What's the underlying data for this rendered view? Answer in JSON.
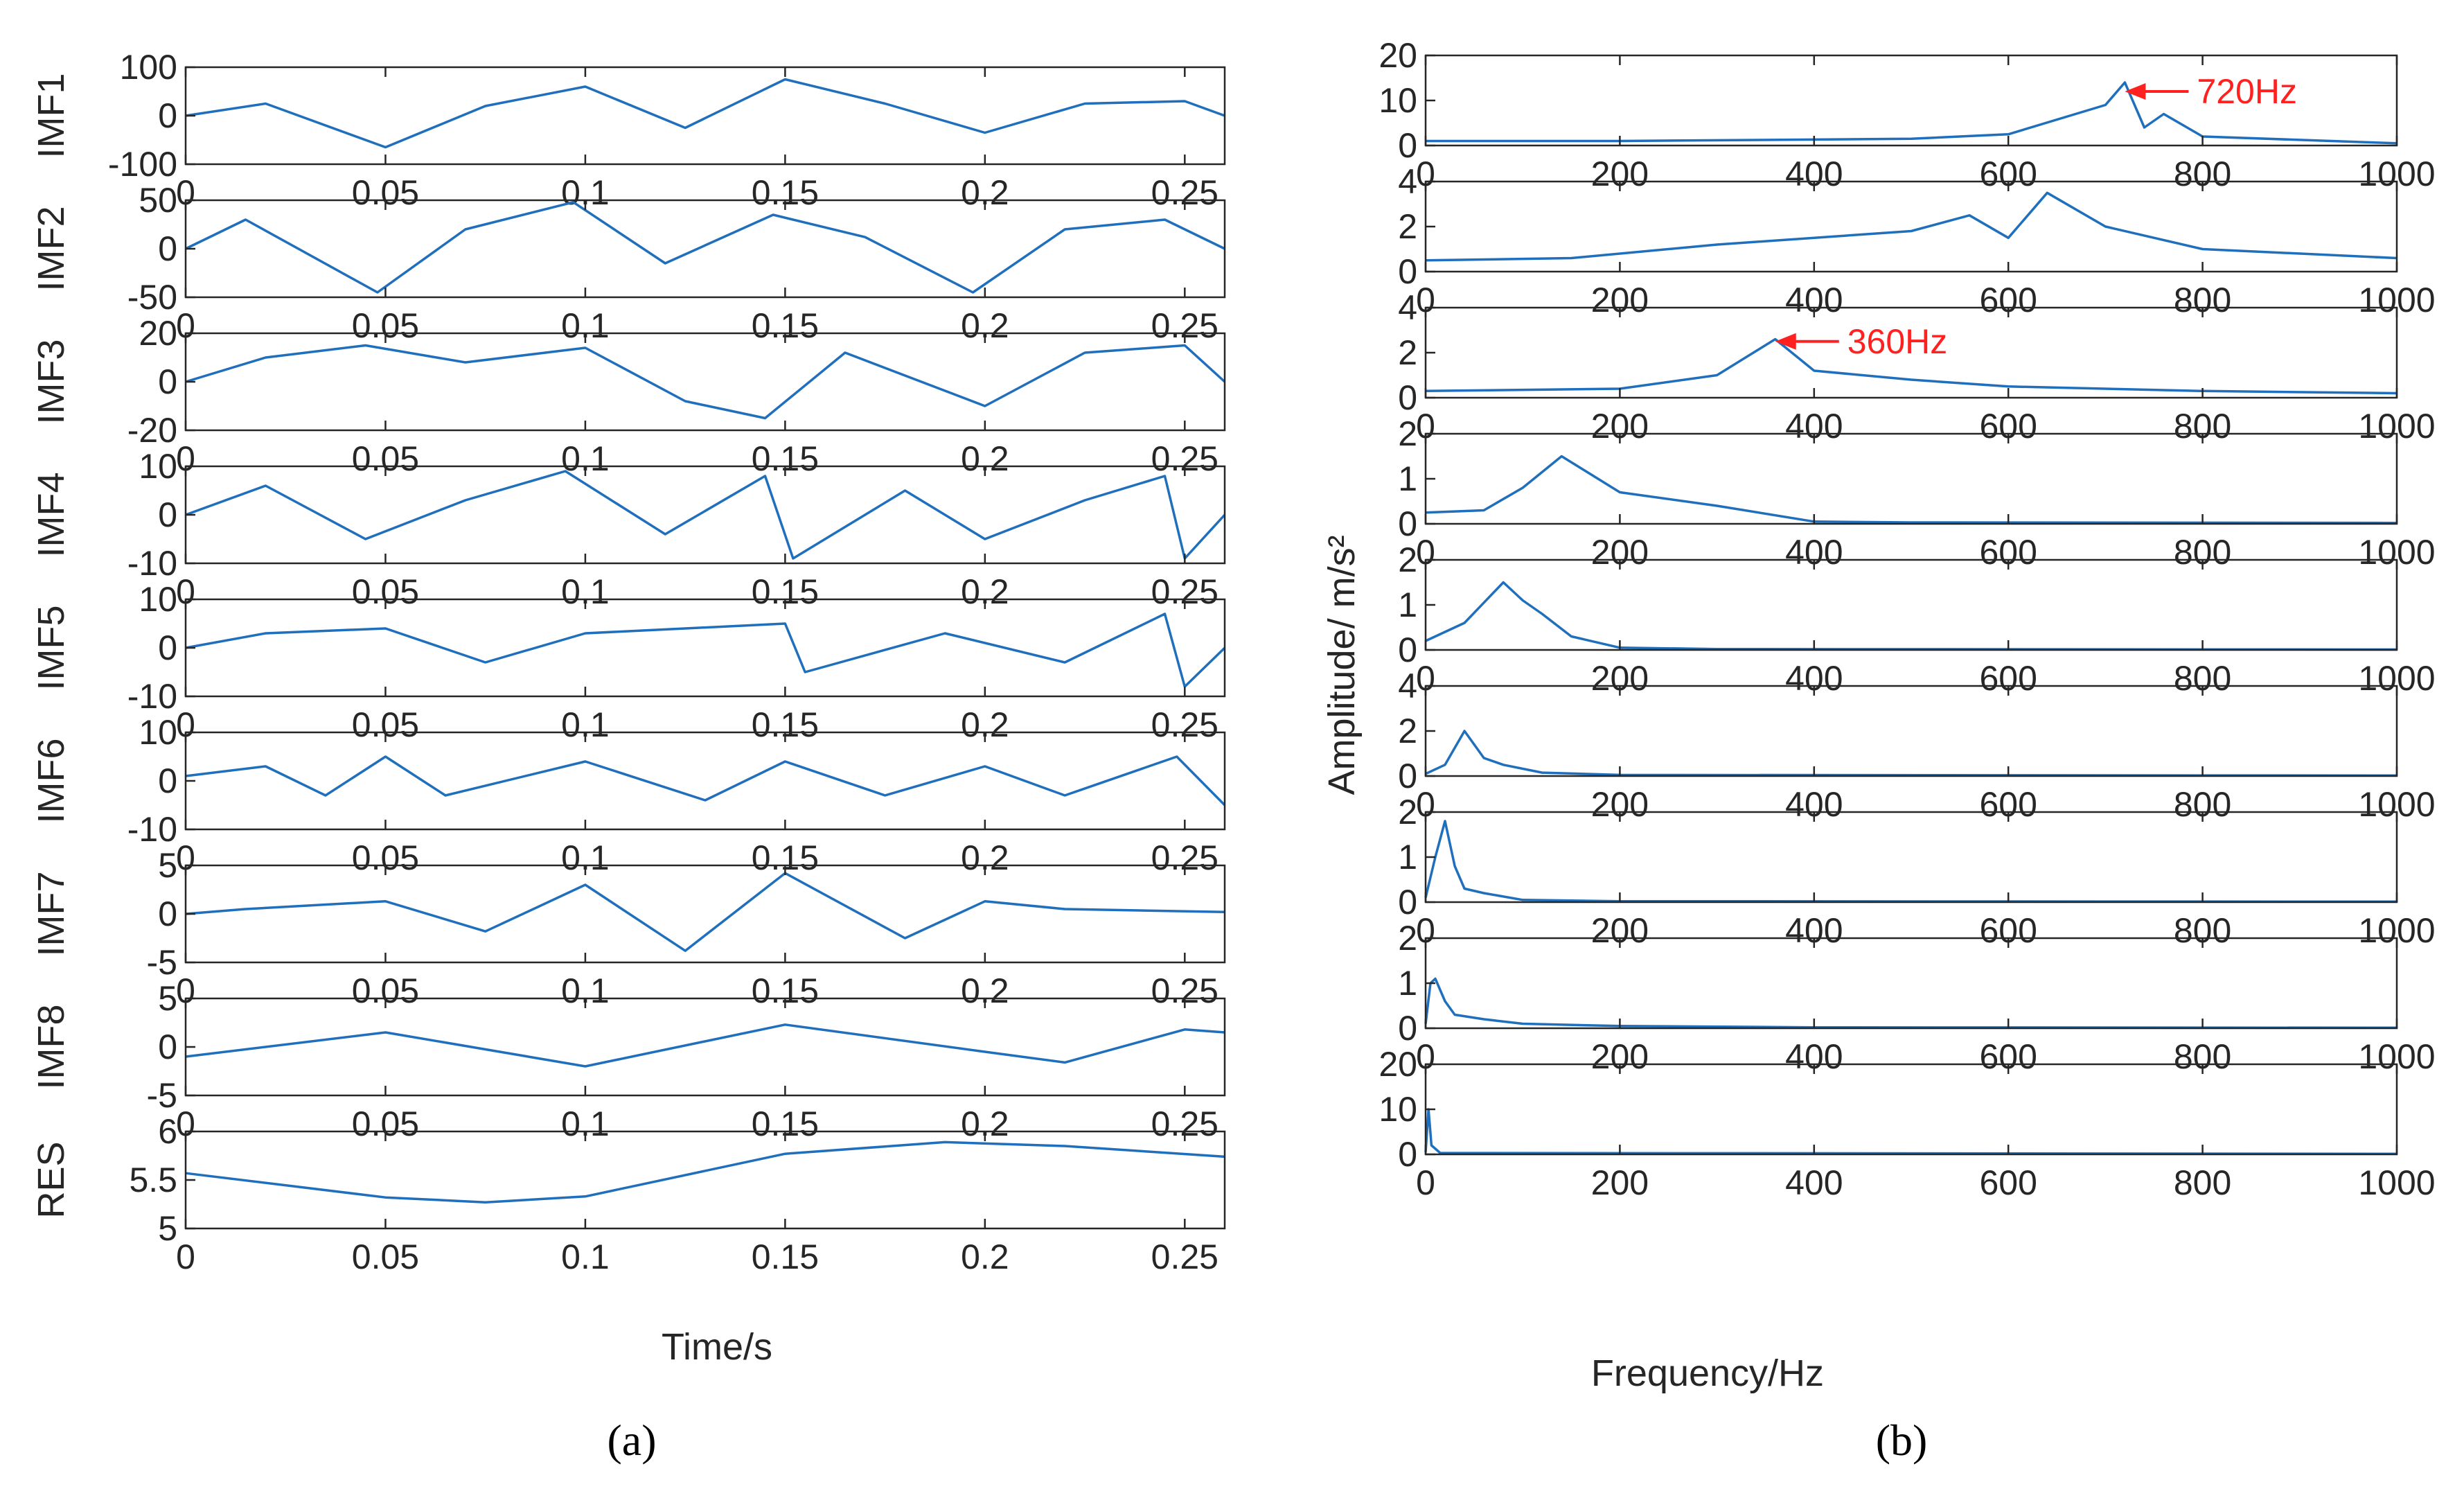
{
  "figure": {
    "panel_a_label": "(a)",
    "panel_b_label": "(b)",
    "colors": {
      "trace": "#1f6fbd",
      "annotation": "#ff2020",
      "axis": "#262626"
    }
  },
  "chart_data": [
    {
      "type": "line",
      "panel": "a",
      "xlabel": "Time/s",
      "xlim": [
        0,
        0.26
      ],
      "xticks": [
        "0",
        "0.05",
        "0.1",
        "0.15",
        "0.2",
        "0.25"
      ],
      "subplots": [
        {
          "ylabel": "IMF1",
          "ylim": [
            -100,
            100
          ],
          "yticks": [
            "-100",
            "0",
            "100"
          ],
          "series": [
            {
              "x": [
                0,
                0.02,
                0.05,
                0.075,
                0.1,
                0.125,
                0.15,
                0.175,
                0.2,
                0.225,
                0.25,
                0.26
              ],
              "y": [
                0,
                25,
                -65,
                20,
                60,
                -25,
                75,
                25,
                -35,
                25,
                30,
                0
              ]
            }
          ]
        },
        {
          "ylabel": "IMF2",
          "ylim": [
            -50,
            50
          ],
          "yticks": [
            "-50",
            "0",
            "50"
          ],
          "series": [
            {
              "x": [
                0,
                0.015,
                0.048,
                0.07,
                0.097,
                0.12,
                0.147,
                0.17,
                0.197,
                0.22,
                0.245,
                0.26
              ],
              "y": [
                0,
                30,
                -45,
                20,
                48,
                -15,
                35,
                12,
                -45,
                20,
                30,
                0
              ]
            }
          ]
        },
        {
          "ylabel": "IMF3",
          "ylim": [
            -20,
            20
          ],
          "yticks": [
            "-20",
            "0",
            "20"
          ],
          "series": [
            {
              "x": [
                0,
                0.02,
                0.045,
                0.07,
                0.1,
                0.125,
                0.145,
                0.165,
                0.2,
                0.225,
                0.25,
                0.26
              ],
              "y": [
                0,
                10,
                15,
                8,
                14,
                -8,
                -15,
                12,
                -10,
                12,
                15,
                0
              ]
            }
          ]
        },
        {
          "ylabel": "IMF4",
          "ylim": [
            -10,
            10
          ],
          "yticks": [
            "-10",
            "0",
            "10"
          ],
          "series": [
            {
              "x": [
                0,
                0.02,
                0.045,
                0.07,
                0.095,
                0.12,
                0.145,
                0.152,
                0.18,
                0.2,
                0.225,
                0.245,
                0.25,
                0.26
              ],
              "y": [
                0,
                6,
                -5,
                3,
                9,
                -4,
                8,
                -9,
                5,
                -5,
                3,
                8,
                -9,
                0
              ]
            }
          ]
        },
        {
          "ylabel": "IMF5",
          "ylim": [
            -10,
            10
          ],
          "yticks": [
            "-10",
            "0",
            "10"
          ],
          "series": [
            {
              "x": [
                0,
                0.02,
                0.05,
                0.075,
                0.1,
                0.125,
                0.15,
                0.155,
                0.19,
                0.22,
                0.245,
                0.25,
                0.26
              ],
              "y": [
                0,
                3,
                4,
                -3,
                3,
                4,
                5,
                -5,
                3,
                -3,
                7,
                -8,
                0
              ]
            }
          ]
        },
        {
          "ylabel": "IMF6",
          "ylim": [
            -10,
            10
          ],
          "yticks": [
            "-10",
            "0",
            "10"
          ],
          "series": [
            {
              "x": [
                0,
                0.02,
                0.035,
                0.05,
                0.065,
                0.1,
                0.13,
                0.15,
                0.175,
                0.2,
                0.22,
                0.248,
                0.26
              ],
              "y": [
                1,
                3,
                -3,
                5,
                -3,
                4,
                -4,
                4,
                -3,
                3,
                -3,
                5,
                -5
              ]
            }
          ]
        },
        {
          "ylabel": "IMF7",
          "ylim": [
            -5,
            5
          ],
          "yticks": [
            "-5",
            "0",
            "5"
          ],
          "series": [
            {
              "x": [
                0,
                0.015,
                0.05,
                0.075,
                0.1,
                0.125,
                0.15,
                0.18,
                0.2,
                0.22,
                0.26
              ],
              "y": [
                0,
                0.5,
                1.3,
                -1.8,
                3.0,
                -3.8,
                4.2,
                -2.5,
                1.3,
                0.5,
                0.2
              ]
            }
          ]
        },
        {
          "ylabel": "IMF8",
          "ylim": [
            -5,
            5
          ],
          "yticks": [
            "-5",
            "0",
            "5"
          ],
          "series": [
            {
              "x": [
                0,
                0.05,
                0.1,
                0.15,
                0.2,
                0.22,
                0.25,
                0.26
              ],
              "y": [
                -1,
                1.5,
                -2,
                2.3,
                -0.5,
                -1.6,
                1.8,
                1.5
              ]
            }
          ]
        },
        {
          "ylabel": "RES",
          "ylim": [
            5,
            6
          ],
          "yticks": [
            "5",
            "5.5",
            "6"
          ],
          "series": [
            {
              "x": [
                0,
                0.05,
                0.075,
                0.1,
                0.15,
                0.19,
                0.22,
                0.26
              ],
              "y": [
                5.57,
                5.32,
                5.27,
                5.33,
                5.77,
                5.89,
                5.85,
                5.74
              ]
            }
          ]
        }
      ]
    },
    {
      "type": "line",
      "panel": "b",
      "xlabel": "Frequency/Hz",
      "ylabel": "Amplitude/  m/s²",
      "xlim": [
        0,
        1000
      ],
      "xticks": [
        "0",
        "200",
        "400",
        "600",
        "800",
        "1000"
      ],
      "subplots": [
        {
          "ylim": [
            0,
            20
          ],
          "yticks": [
            "0",
            "10",
            "20"
          ],
          "series": [
            {
              "x": [
                0,
                200,
                500,
                600,
                700,
                720,
                740,
                760,
                800,
                1000
              ],
              "y": [
                1,
                1,
                1.5,
                2.5,
                9,
                14,
                4,
                7,
                2,
                0.5
              ]
            }
          ],
          "annotations": [
            {
              "text": "720Hz",
              "x": 720,
              "y": 12
            }
          ]
        },
        {
          "ylim": [
            0,
            4
          ],
          "yticks": [
            "0",
            "2",
            "4"
          ],
          "series": [
            {
              "x": [
                0,
                150,
                300,
                500,
                560,
                600,
                640,
                700,
                800,
                1000
              ],
              "y": [
                0.5,
                0.6,
                1.2,
                1.8,
                2.5,
                1.5,
                3.5,
                2,
                1,
                0.6
              ]
            }
          ]
        },
        {
          "ylim": [
            0,
            4
          ],
          "yticks": [
            "0",
            "2",
            "4"
          ],
          "series": [
            {
              "x": [
                0,
                200,
                300,
                360,
                400,
                500,
                600,
                800,
                1000
              ],
              "y": [
                0.3,
                0.4,
                1,
                2.6,
                1.2,
                0.8,
                0.5,
                0.3,
                0.2
              ]
            }
          ],
          "annotations": [
            {
              "text": "360Hz",
              "x": 360,
              "y": 2.5
            }
          ]
        },
        {
          "ylim": [
            0,
            2
          ],
          "yticks": [
            "0",
            "1",
            "2"
          ],
          "series": [
            {
              "x": [
                0,
                60,
                100,
                140,
                200,
                300,
                400,
                500,
                1000
              ],
              "y": [
                0.25,
                0.3,
                0.8,
                1.5,
                0.7,
                0.4,
                0.05,
                0.03,
                0.02
              ]
            }
          ]
        },
        {
          "ylim": [
            0,
            2
          ],
          "yticks": [
            "0",
            "1",
            "2"
          ],
          "series": [
            {
              "x": [
                0,
                40,
                80,
                100,
                120,
                150,
                200,
                300,
                1000
              ],
              "y": [
                0.2,
                0.6,
                1.5,
                1.1,
                0.8,
                0.3,
                0.05,
                0.02,
                0.01
              ]
            }
          ]
        },
        {
          "ylim": [
            0,
            4
          ],
          "yticks": [
            "0",
            "2",
            "4"
          ],
          "series": [
            {
              "x": [
                0,
                20,
                40,
                60,
                80,
                120,
                200,
                1000
              ],
              "y": [
                0.1,
                0.5,
                2,
                0.8,
                0.5,
                0.15,
                0.05,
                0.02
              ]
            }
          ]
        },
        {
          "ylim": [
            0,
            2
          ],
          "yticks": [
            "0",
            "1",
            "2"
          ],
          "series": [
            {
              "x": [
                0,
                10,
                20,
                30,
                40,
                60,
                100,
                200,
                1000
              ],
              "y": [
                0.1,
                1,
                1.8,
                0.8,
                0.3,
                0.2,
                0.05,
                0.02,
                0.01
              ]
            }
          ]
        },
        {
          "ylim": [
            0,
            2
          ],
          "yticks": [
            "0",
            "1",
            "2"
          ],
          "series": [
            {
              "x": [
                0,
                5,
                10,
                20,
                30,
                60,
                100,
                200,
                400,
                1000
              ],
              "y": [
                0.1,
                1,
                1.1,
                0.6,
                0.3,
                0.2,
                0.1,
                0.05,
                0.02,
                0.01
              ]
            }
          ]
        },
        {
          "ylim": [
            0,
            20
          ],
          "yticks": [
            "0",
            "10",
            "20"
          ],
          "series": [
            {
              "x": [
                0,
                3,
                6,
                15,
                1000
              ],
              "y": [
                0.5,
                10,
                2,
                0.3,
                0.1
              ]
            }
          ]
        }
      ]
    }
  ]
}
